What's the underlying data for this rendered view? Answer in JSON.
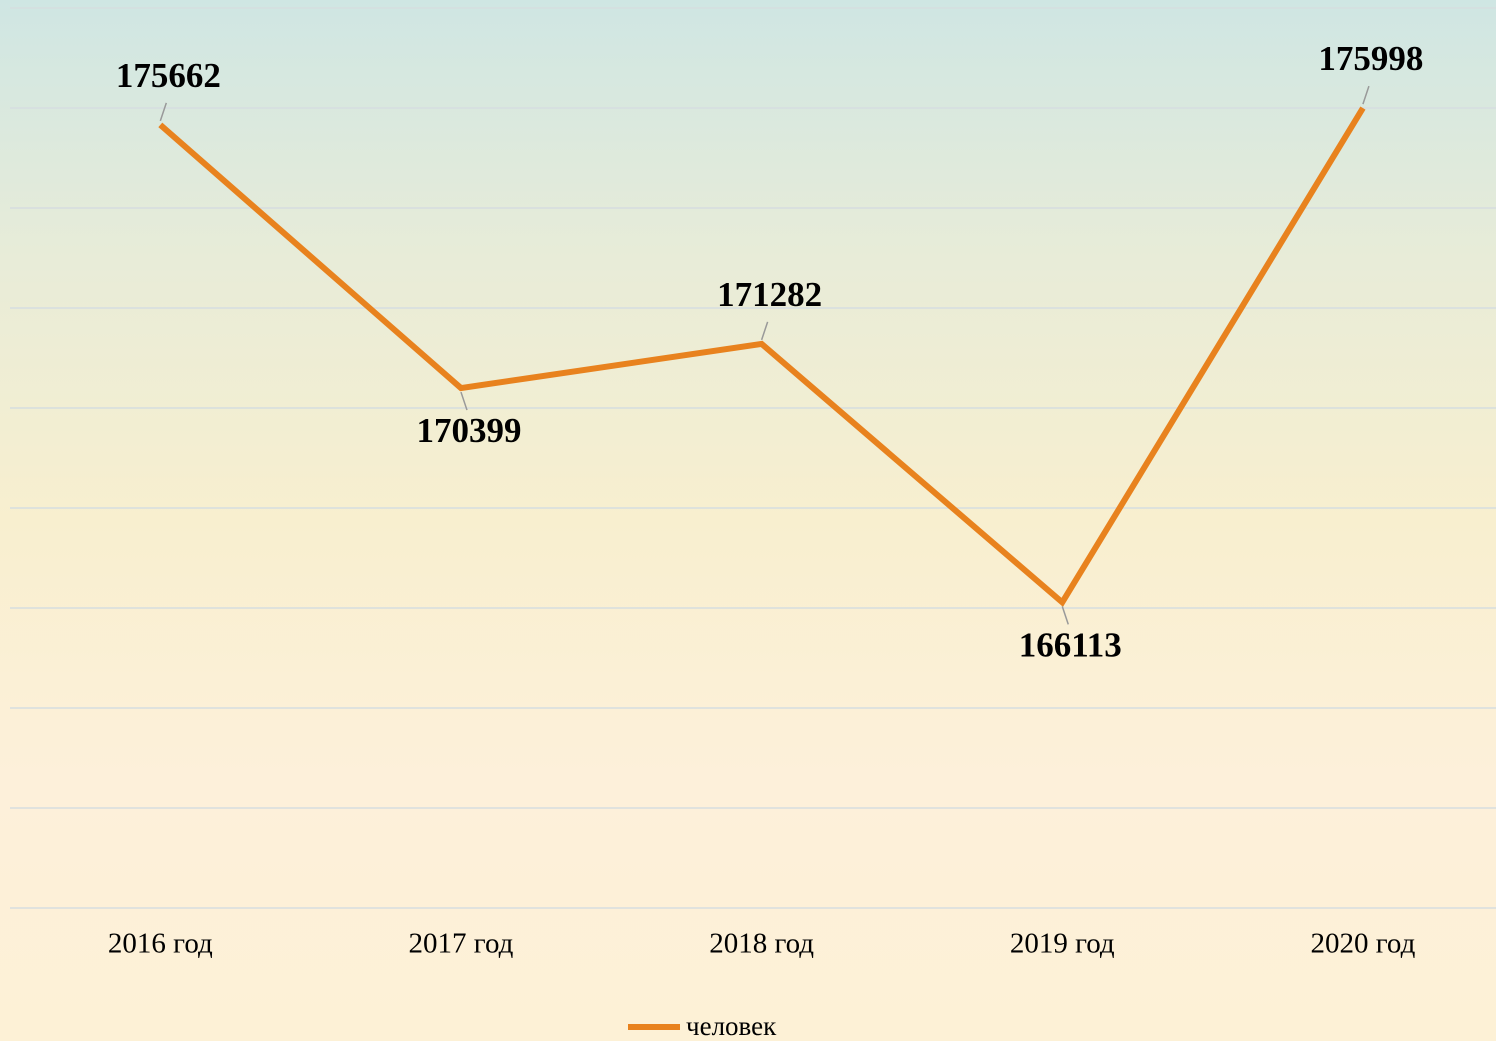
{
  "chart_data": {
    "type": "line",
    "categories": [
      "2016 год",
      "2017 год",
      "2018 год",
      "2019 год",
      "2020 год"
    ],
    "series": [
      {
        "name": "человек",
        "color": "#e8821e",
        "values": [
          175662,
          170399,
          171282,
          166113,
          175998
        ]
      }
    ],
    "ylim": [
      160000,
      178000
    ],
    "yticks": [
      160000,
      162000,
      164000,
      166000,
      168000,
      170000,
      172000,
      174000,
      176000,
      178000
    ],
    "grid": true,
    "legend": "bottom"
  }
}
